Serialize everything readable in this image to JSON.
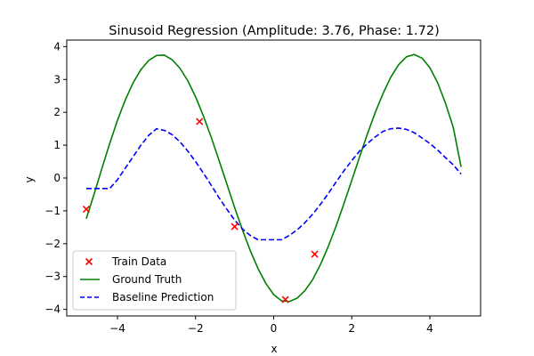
{
  "chart_data": {
    "type": "line",
    "title": "Sinusoid Regression (Amplitude: 3.76, Phase: 1.72)",
    "xlabel": "x",
    "ylabel": "y",
    "xlim": [
      -5.3,
      5.3
    ],
    "ylim": [
      -4.2,
      4.2
    ],
    "xticks": [
      -4,
      -2,
      0,
      2,
      4
    ],
    "yticks": [
      -4,
      -3,
      -2,
      -1,
      0,
      1,
      2,
      3,
      4
    ],
    "grid": false,
    "legend_position": "lower-left",
    "series": [
      {
        "name": "Train Data",
        "kind": "scatter",
        "color": "#ff0000",
        "marker": "x",
        "x": [
          -4.8,
          -1.9,
          -1.0,
          0.3,
          1.05
        ],
        "y": [
          -0.95,
          1.72,
          -1.48,
          -3.7,
          -2.32
        ]
      },
      {
        "name": "Ground Truth",
        "kind": "line",
        "color": "#008000",
        "style": "solid",
        "x": [
          -4.8,
          -4.6,
          -4.4,
          -4.2,
          -4.0,
          -3.8,
          -3.6,
          -3.4,
          -3.2,
          -3.0,
          -2.8,
          -2.6,
          -2.4,
          -2.2,
          -2.0,
          -1.8,
          -1.6,
          -1.4,
          -1.2,
          -1.0,
          -0.8,
          -0.6,
          -0.4,
          -0.2,
          0.0,
          0.2,
          0.4,
          0.6,
          0.8,
          1.0,
          1.2,
          1.4,
          1.6,
          1.8,
          2.0,
          2.2,
          2.4,
          2.6,
          2.8,
          3.0,
          3.2,
          3.4,
          3.6,
          3.8,
          4.0,
          4.2,
          4.4,
          4.6,
          4.8
        ],
        "y": [
          -1.24,
          -0.49,
          0.29,
          1.05,
          1.76,
          2.38,
          2.9,
          3.3,
          3.58,
          3.73,
          3.74,
          3.6,
          3.34,
          2.96,
          2.47,
          1.89,
          1.24,
          0.54,
          -0.18,
          -0.9,
          -1.58,
          -2.21,
          -2.76,
          -3.21,
          -3.55,
          -3.74,
          -3.76,
          -3.66,
          -3.43,
          -3.09,
          -2.63,
          -2.08,
          -1.46,
          -0.78,
          -0.07,
          0.64,
          1.34,
          1.99,
          2.57,
          3.07,
          3.45,
          3.69,
          3.76,
          3.65,
          3.36,
          2.9,
          2.28,
          1.54,
          0.34
        ]
      },
      {
        "name": "Baseline Prediction",
        "kind": "line",
        "color": "#0000ff",
        "style": "dashed",
        "x": [
          -4.8,
          -4.6,
          -4.4,
          -4.2,
          -4.0,
          -3.8,
          -3.6,
          -3.4,
          -3.2,
          -3.0,
          -2.8,
          -2.6,
          -2.4,
          -2.2,
          -2.0,
          -1.8,
          -1.6,
          -1.4,
          -1.2,
          -1.0,
          -0.8,
          -0.6,
          -0.4,
          -0.2,
          0.0,
          0.2,
          0.4,
          0.6,
          0.8,
          1.0,
          1.2,
          1.4,
          1.6,
          1.8,
          2.0,
          2.2,
          2.4,
          2.6,
          2.8,
          3.0,
          3.2,
          3.4,
          3.6,
          3.8,
          4.0,
          4.2,
          4.4,
          4.6,
          4.8
        ],
        "y": [
          -0.32,
          -0.32,
          -0.32,
          -0.32,
          -0.05,
          0.3,
          0.65,
          1.0,
          1.3,
          1.5,
          1.45,
          1.32,
          1.1,
          0.82,
          0.5,
          0.15,
          -0.22,
          -0.6,
          -0.95,
          -1.28,
          -1.55,
          -1.75,
          -1.88,
          -1.88,
          -1.88,
          -1.88,
          -1.75,
          -1.58,
          -1.36,
          -1.1,
          -0.8,
          -0.47,
          -0.12,
          0.22,
          0.53,
          0.82,
          1.05,
          1.25,
          1.42,
          1.5,
          1.52,
          1.48,
          1.38,
          1.22,
          1.05,
          0.85,
          0.62,
          0.4,
          0.12
        ]
      }
    ]
  }
}
